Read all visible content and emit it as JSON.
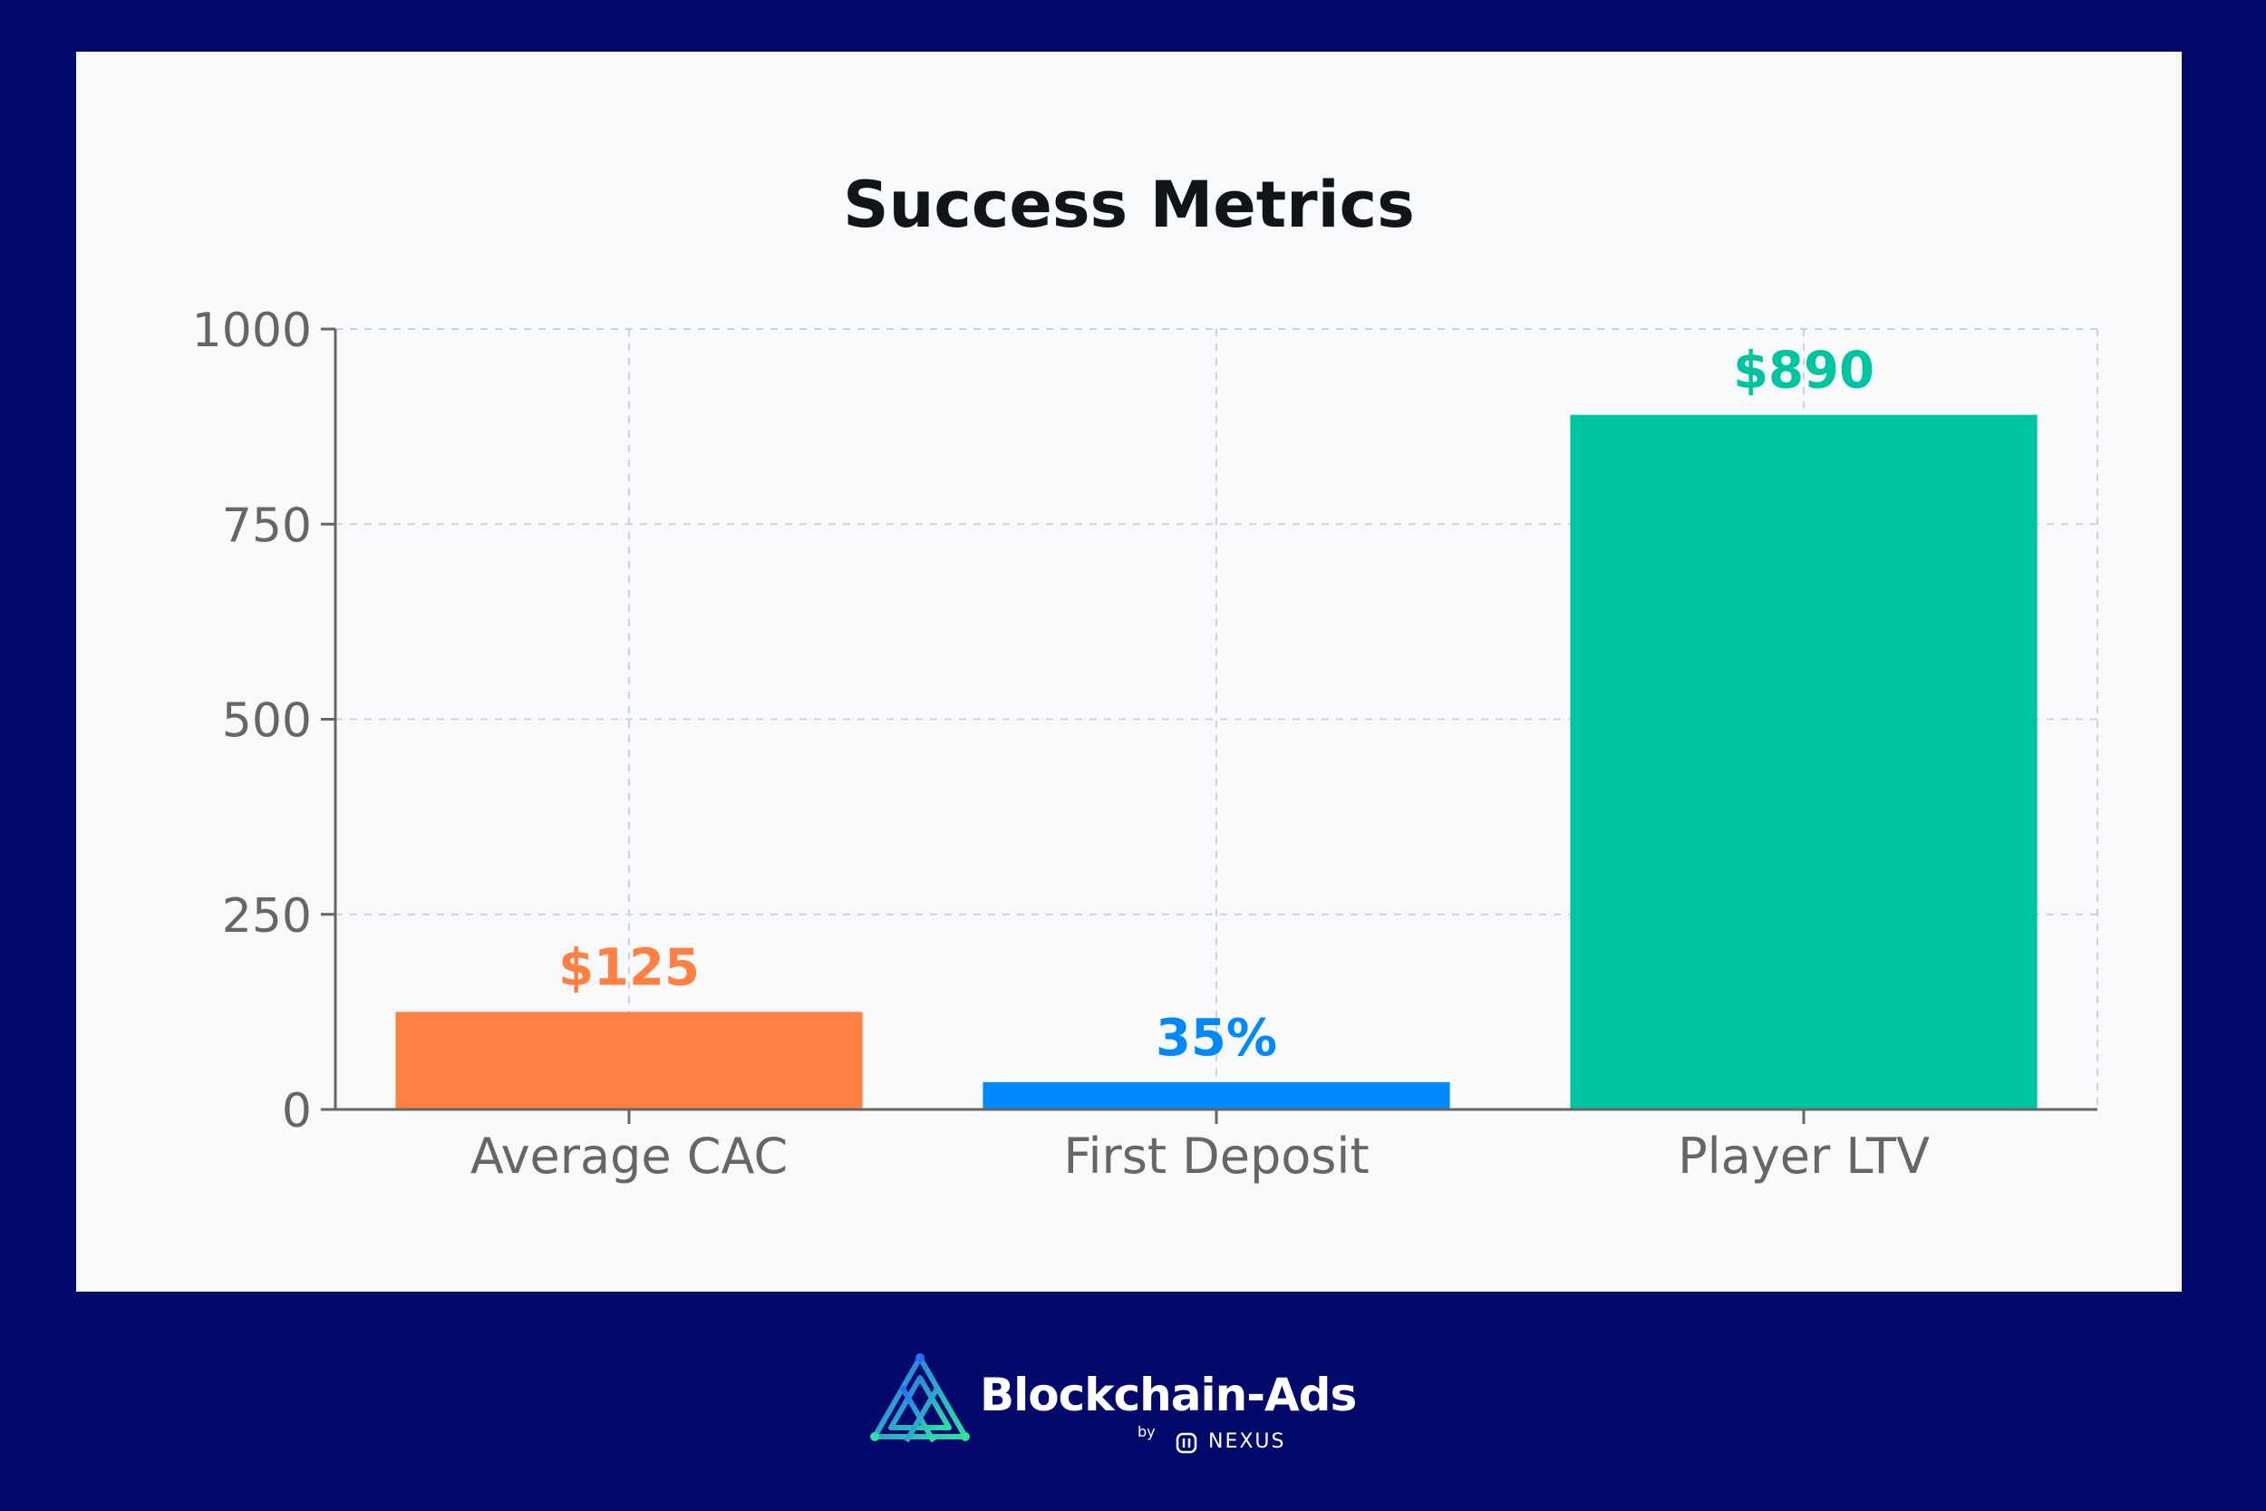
{
  "chart_data": {
    "type": "bar",
    "title": "Success Metrics",
    "categories": [
      "Average CAC",
      "First Deposit",
      "Player LTV"
    ],
    "values": [
      125,
      35,
      890
    ],
    "labels": [
      "$125",
      "35%",
      "$890"
    ],
    "colors": [
      "#ff8042",
      "#0088fe",
      "#00c49f"
    ],
    "ylim": [
      0,
      1000
    ],
    "yticks": [
      0,
      250,
      500,
      750,
      1000
    ],
    "grid": true,
    "xlabel": "",
    "ylabel": ""
  },
  "footer": {
    "brand": "Blockchain-Ads",
    "by": "by",
    "partner": "NEXUS"
  },
  "colors": {
    "background": "#030a6b",
    "panel": "#f8f9fb"
  },
  "icons": {
    "brand_logo": "blockchain-ads-logo-icon",
    "partner_logo": "nexus-logo-icon"
  }
}
